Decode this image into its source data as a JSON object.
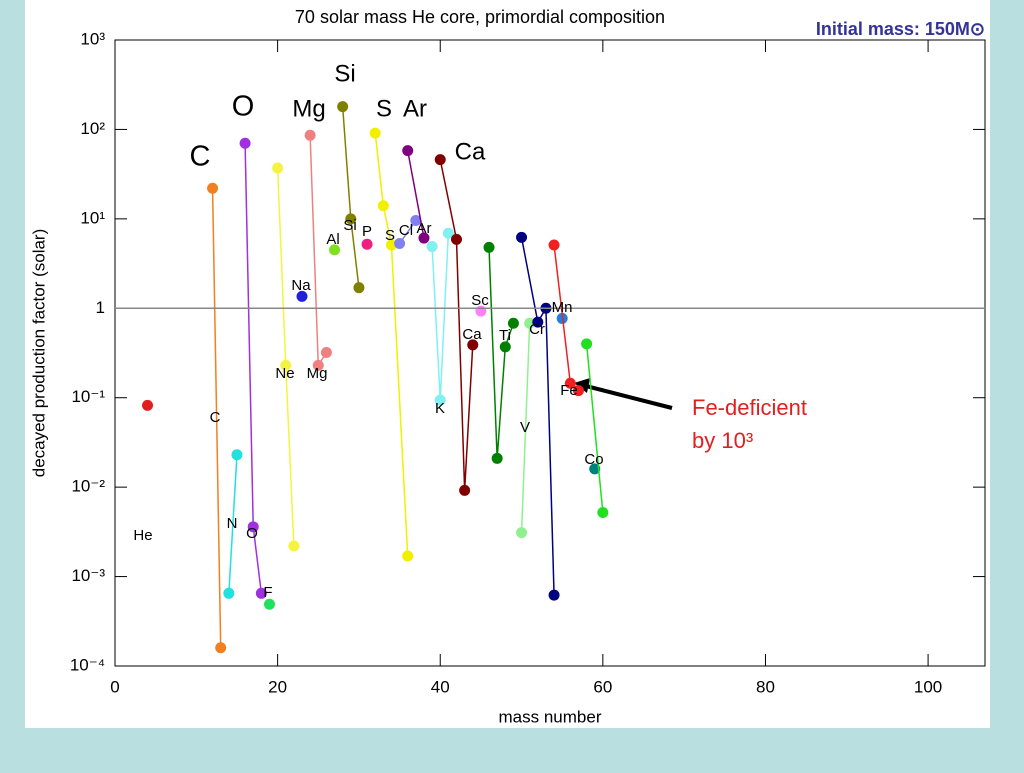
{
  "chart_data": {
    "type": "line",
    "title": "70 solar mass He core, primordial composition",
    "subtitle": "Initial mass: 150M⊙",
    "xlabel": "mass number",
    "ylabel": "decayed production factor (solar)",
    "xlim": [
      0,
      107
    ],
    "xticks": [
      0,
      20,
      40,
      60,
      80,
      100
    ],
    "ylim": [
      0.0001,
      1000
    ],
    "log_y": true,
    "yticks": [
      {
        "value": 0.0001,
        "label": "10⁻⁴"
      },
      {
        "value": 0.001,
        "label": "10⁻³"
      },
      {
        "value": 0.01,
        "label": "10⁻²"
      },
      {
        "value": 0.1,
        "label": "10⁻¹"
      },
      1,
      {
        "value": 10,
        "label": "10¹"
      },
      {
        "value": 100,
        "label": "10²"
      },
      {
        "value": 1000,
        "label": "10³"
      }
    ],
    "hline": 1,
    "annotations": [
      "C",
      "O",
      "Mg",
      "Si",
      "S",
      "Ar",
      "Ca"
    ],
    "note": [
      "Fe-deficient",
      "by 10³"
    ],
    "series": [
      {
        "name": "He",
        "color": "#e02020",
        "x": [
          4
        ],
        "values": [
          0.082
        ]
      },
      {
        "name": "C",
        "color": "#f08020",
        "x": [
          12,
          13
        ],
        "values": [
          22,
          0.00016
        ]
      },
      {
        "name": "N",
        "color": "#20e0e0",
        "x": [
          14,
          15
        ],
        "values": [
          0.00065,
          0.023
        ]
      },
      {
        "name": "O",
        "color": "#a030e0",
        "x": [
          16,
          17,
          18
        ],
        "values": [
          70,
          0.0036,
          0.00065
        ]
      },
      {
        "name": "F",
        "color": "#20e060",
        "x": [
          19
        ],
        "values": [
          0.00049
        ]
      },
      {
        "name": "Ne",
        "color": "#f4f440",
        "x": [
          20,
          21,
          22
        ],
        "values": [
          37,
          0.23,
          0.0022
        ]
      },
      {
        "name": "Na",
        "color": "#2020e0",
        "x": [
          23
        ],
        "values": [
          1.36
        ]
      },
      {
        "name": "Mg",
        "color": "#f08080",
        "x": [
          24,
          25,
          26
        ],
        "values": [
          86,
          0.23,
          0.32
        ]
      },
      {
        "name": "Al",
        "color": "#80e020",
        "x": [
          27
        ],
        "values": [
          4.5
        ]
      },
      {
        "name": "Si",
        "color": "#808000",
        "x": [
          28,
          29,
          30
        ],
        "values": [
          180,
          10,
          1.7
        ]
      },
      {
        "name": "P",
        "color": "#f02080",
        "x": [
          31
        ],
        "values": [
          5.2
        ]
      },
      {
        "name": "S",
        "color": "#f0f000",
        "x": [
          32,
          33,
          34,
          36
        ],
        "values": [
          91,
          14,
          5.1,
          0.0017
        ]
      },
      {
        "name": "Cl",
        "color": "#8080f0",
        "x": [
          35,
          37
        ],
        "values": [
          5.3,
          9.6
        ]
      },
      {
        "name": "Ar",
        "color": "#800080",
        "x": [
          36,
          38
        ],
        "values": [
          58,
          6.1
        ]
      },
      {
        "name": "K",
        "color": "#80f0f0",
        "x": [
          39,
          40,
          41
        ],
        "values": [
          4.9,
          0.094,
          6.9
        ]
      },
      {
        "name": "Ca",
        "color": "#800000",
        "x": [
          40,
          42,
          43,
          44
        ],
        "values": [
          46,
          5.9,
          0.0092,
          0.39
        ]
      },
      {
        "name": "Sc",
        "color": "#ff80ff",
        "x": [
          45
        ],
        "values": [
          0.93
        ]
      },
      {
        "name": "Ti",
        "color": "#008000",
        "x": [
          46,
          47,
          48,
          49
        ],
        "values": [
          4.8,
          0.021,
          0.37,
          0.68
        ]
      },
      {
        "name": "V",
        "color": "#90f090",
        "x": [
          50,
          51
        ],
        "values": [
          0.0031,
          0.68
        ]
      },
      {
        "name": "Cr",
        "color": "#000080",
        "x": [
          50,
          52,
          53,
          54
        ],
        "values": [
          6.2,
          0.7,
          1.0,
          0.00062
        ]
      },
      {
        "name": "Mn",
        "color": "#2080e0",
        "x": [
          55
        ],
        "values": [
          0.77
        ]
      },
      {
        "name": "Fe",
        "color": "#f02020",
        "x": [
          54,
          56,
          57
        ],
        "values": [
          5.1,
          0.145,
          0.12
        ]
      },
      {
        "name": "Co",
        "color": "#008080",
        "x": [
          59
        ],
        "values": [
          0.016
        ]
      },
      {
        "color": "#20e020",
        "x": [
          58,
          60
        ],
        "values": [
          0.4,
          0.0052
        ]
      }
    ]
  }
}
